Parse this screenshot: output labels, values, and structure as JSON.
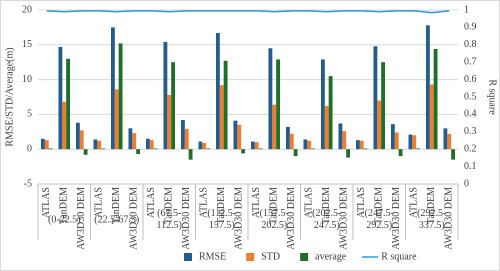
{
  "chart_data": {
    "type": "bar",
    "groups": [
      "(0-22.5)",
      "(22.5-67.5)",
      "(67.5-112.5)",
      "(112.5-157.5)",
      "(157.5-202.5)",
      "(202.5-247.5)",
      "(247.5-292.5)",
      "(292.5-337.5)"
    ],
    "categories": [
      "ATLAS",
      "TanDEM",
      "AW3D30 DEM",
      "ATLAS",
      "TanDEM",
      "AW3D30 DEM",
      "ATLAS",
      "TanDEM",
      "AW3D30 DEM",
      "ATLAS",
      "TanDEM",
      "AW3D30 DEM",
      "ATLAS",
      "TanDEM",
      "AW3D30 DEM",
      "ATLAS",
      "TanDEM",
      "AW3D30 DEM",
      "ATLAS",
      "TanDEM",
      "AW3D30 DEM",
      "ATLAS",
      "TanDEM",
      "AW3D30 DEM"
    ],
    "y_label": "RMSE/STD/Average(m)",
    "y2_label": "R square",
    "series": [
      {
        "name": "RMSE",
        "color": "#245d8c",
        "values": [
          1.5,
          14.7,
          3.8,
          1.4,
          17.5,
          3.0,
          1.5,
          15.4,
          4.2,
          1.1,
          16.7,
          4.1,
          1.1,
          14.5,
          3.2,
          1.4,
          12.9,
          3.7,
          1.3,
          14.8,
          3.6,
          2.1,
          17.8,
          3.0
        ]
      },
      {
        "name": "STD",
        "color": "#ed7d31",
        "values": [
          1.3,
          6.8,
          2.7,
          1.2,
          8.6,
          2.3,
          1.3,
          7.8,
          2.9,
          0.9,
          9.2,
          3.5,
          1.0,
          6.4,
          2.2,
          1.2,
          6.2,
          2.6,
          1.2,
          7.0,
          2.4,
          2.0,
          9.3,
          2.2
        ]
      },
      {
        "name": "average",
        "color": "#1f6e2a",
        "values": [
          0.1,
          13.0,
          -0.8,
          0.1,
          15.2,
          -0.7,
          0.1,
          12.5,
          -1.5,
          0.1,
          12.7,
          -0.6,
          0.1,
          12.9,
          -1.0,
          0.1,
          10.5,
          -1.2,
          0.1,
          12.5,
          -1.0,
          0.1,
          14.4,
          -1.5
        ]
      },
      {
        "name": "R square",
        "color": "#2e9bd6",
        "axis": "y2",
        "type": "line",
        "values": [
          0.995,
          0.99,
          0.995,
          0.995,
          0.99,
          0.995,
          0.995,
          0.99,
          0.995,
          0.995,
          0.995,
          0.995,
          0.995,
          0.99,
          0.995,
          0.995,
          0.99,
          0.995,
          0.995,
          0.99,
          0.995,
          0.995,
          0.985,
          0.995
        ]
      }
    ],
    "ylim": [
      -5,
      20
    ],
    "yticks": [
      -5,
      0,
      5,
      10,
      15,
      20
    ],
    "y2lim": [
      0,
      1
    ],
    "y2ticks": [
      0,
      0.1,
      0.2,
      0.3,
      0.4,
      0.5,
      0.6,
      0.7,
      0.8,
      0.9,
      1
    ],
    "grid": true,
    "legend": "bottom"
  }
}
